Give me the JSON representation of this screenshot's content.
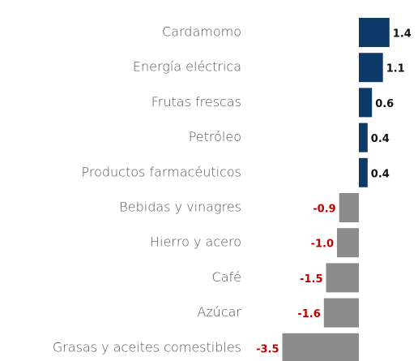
{
  "chart_data": {
    "type": "barh",
    "categories": [
      "Cardamomo",
      "Energía eléctrica",
      "Frutas frescas",
      "Petróleo",
      "Productos farmacéuticos",
      "Bebidas y vinagres",
      "Hierro y acero",
      "Café",
      "Azúcar",
      "Grasas y aceites comestibles"
    ],
    "values": [
      1.4,
      1.1,
      0.6,
      0.4,
      0.4,
      -0.9,
      -1.0,
      -1.5,
      -1.6,
      -3.5
    ],
    "value_labels": [
      "1.4",
      "1.1",
      "0.6",
      "0.4",
      "0.4",
      "-0.9",
      "-1.0",
      "-1.5",
      "-1.6",
      "-3.5"
    ],
    "color_positive": "#0e3a6b",
    "color_negative": "#8c8c8c",
    "label_color_positive": "#111111",
    "label_color_negative": "#c00000"
  }
}
